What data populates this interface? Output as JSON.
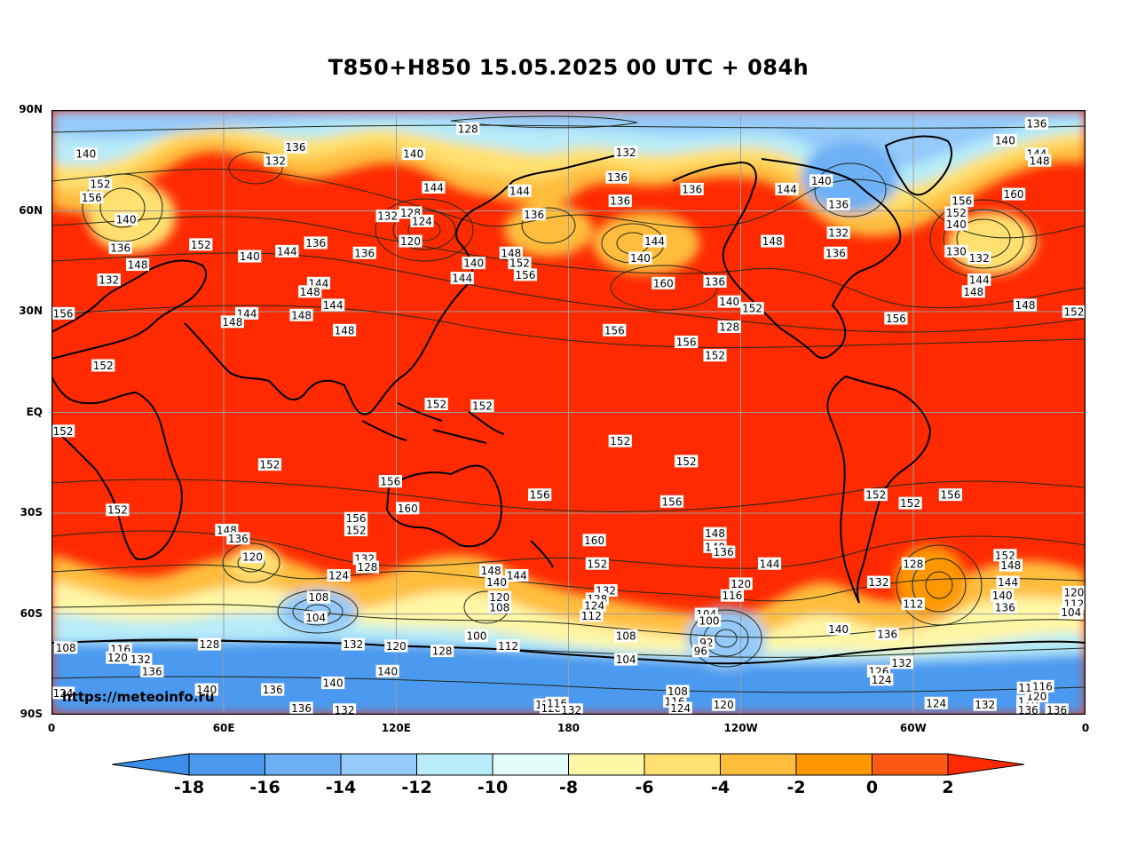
{
  "title": "T850+H850 15.05.2025 00 UTC + 084h",
  "watermark": "https://meteoinfo.ru",
  "lat_labels": [
    "90N",
    "60N",
    "30N",
    "EQ",
    "30S",
    "60S",
    "90S"
  ],
  "lon_labels": [
    "0",
    "60E",
    "120E",
    "180",
    "120W",
    "60W",
    "0"
  ],
  "colorbar": {
    "ticks": [
      "-18",
      "-16",
      "-14",
      "-12",
      "-10",
      "-8",
      "-6",
      "-4",
      "-2",
      "0",
      "2"
    ],
    "colors": [
      "#3b8fe9",
      "#4c9af0",
      "#6eb0f5",
      "#94c9fa",
      "#b7ecf8",
      "#e3fdfb",
      "#fff6a6",
      "#ffe070",
      "#ffbd3c",
      "#ff9800",
      "#ff5a14",
      "#ff2a00"
    ]
  },
  "contour_labels": [
    {
      "t": "128",
      "lon": 145,
      "lat": 84.5
    },
    {
      "t": "136",
      "lon": -17,
      "lat": 86
    },
    {
      "t": "140",
      "lon": -28,
      "lat": 81
    },
    {
      "t": "144",
      "lon": -17,
      "lat": 77
    },
    {
      "t": "148",
      "lon": -16,
      "lat": 75
    },
    {
      "t": "140",
      "lon": 12,
      "lat": 77
    },
    {
      "t": "136",
      "lon": 85,
      "lat": 79
    },
    {
      "t": "132",
      "lon": 78,
      "lat": 75
    },
    {
      "t": "140",
      "lon": 126,
      "lat": 77
    },
    {
      "t": "132",
      "lon": -160,
      "lat": 77.5
    },
    {
      "t": "136",
      "lon": -163,
      "lat": 70
    },
    {
      "t": "136",
      "lon": -137,
      "lat": 66.5
    },
    {
      "t": "144",
      "lon": -104,
      "lat": 66.5
    },
    {
      "t": "140",
      "lon": -92,
      "lat": 69
    },
    {
      "t": "136",
      "lon": -86,
      "lat": 62
    },
    {
      "t": "132",
      "lon": -86,
      "lat": 53.5
    },
    {
      "t": "136",
      "lon": -87,
      "lat": 47.5
    },
    {
      "t": "148",
      "lon": -109,
      "lat": 51
    },
    {
      "t": "156",
      "lon": -43,
      "lat": 63
    },
    {
      "t": "152",
      "lon": -45,
      "lat": 59.5
    },
    {
      "t": "140",
      "lon": -45,
      "lat": 56
    },
    {
      "t": "160",
      "lon": -25,
      "lat": 65
    },
    {
      "t": "130",
      "lon": -45,
      "lat": 48
    },
    {
      "t": "132",
      "lon": -37,
      "lat": 46
    },
    {
      "t": "144",
      "lon": -37,
      "lat": 39.5
    },
    {
      "t": "148",
      "lon": -39,
      "lat": 36
    },
    {
      "t": "148",
      "lon": -21,
      "lat": 32
    },
    {
      "t": "152",
      "lon": -4,
      "lat": 30
    },
    {
      "t": "156",
      "lon": -66,
      "lat": 28
    },
    {
      "t": "152",
      "lon": -116,
      "lat": 31
    },
    {
      "t": "136",
      "lon": -129,
      "lat": 39
    },
    {
      "t": "140",
      "lon": -124,
      "lat": 33
    },
    {
      "t": "128",
      "lon": -124,
      "lat": 25.5
    },
    {
      "t": "152",
      "lon": 17,
      "lat": 68
    },
    {
      "t": "156",
      "lon": 14,
      "lat": 64
    },
    {
      "t": "140",
      "lon": 26,
      "lat": 57.5
    },
    {
      "t": "136",
      "lon": 24,
      "lat": 49
    },
    {
      "t": "148",
      "lon": 30,
      "lat": 44
    },
    {
      "t": "152",
      "lon": 52,
      "lat": 50
    },
    {
      "t": "140",
      "lon": 69,
      "lat": 46.5
    },
    {
      "t": "144",
      "lon": 82,
      "lat": 48
    },
    {
      "t": "136",
      "lon": 92,
      "lat": 50.5
    },
    {
      "t": "136",
      "lon": 109,
      "lat": 47.5
    },
    {
      "t": "132",
      "lon": 117,
      "lat": 58.5
    },
    {
      "t": "128",
      "lon": 125,
      "lat": 59.5
    },
    {
      "t": "124",
      "lon": 129,
      "lat": 57
    },
    {
      "t": "120",
      "lon": 125,
      "lat": 51
    },
    {
      "t": "144",
      "lon": 133,
      "lat": 67
    },
    {
      "t": "144",
      "lon": 163,
      "lat": 66
    },
    {
      "t": "136",
      "lon": 168,
      "lat": 59
    },
    {
      "t": "148",
      "lon": 160,
      "lat": 47.5
    },
    {
      "t": "152",
      "lon": 163,
      "lat": 44.5
    },
    {
      "t": "156",
      "lon": 165,
      "lat": 41
    },
    {
      "t": "140",
      "lon": 147,
      "lat": 44.5
    },
    {
      "t": "144",
      "lon": 143,
      "lat": 40
    },
    {
      "t": "136",
      "lon": -162,
      "lat": 63
    },
    {
      "t": "144",
      "lon": -150,
      "lat": 51
    },
    {
      "t": "140",
      "lon": -155,
      "lat": 46
    },
    {
      "t": "160",
      "lon": -147,
      "lat": 38.5
    },
    {
      "t": "156",
      "lon": -164,
      "lat": 24.5
    },
    {
      "t": "156",
      "lon": -139,
      "lat": 21
    },
    {
      "t": "152",
      "lon": -129,
      "lat": 17
    },
    {
      "t": "132",
      "lon": 20,
      "lat": 39.5
    },
    {
      "t": "144",
      "lon": 93,
      "lat": 38.5
    },
    {
      "t": "148",
      "lon": 90,
      "lat": 36
    },
    {
      "t": "144",
      "lon": 98,
      "lat": 32
    },
    {
      "t": "148",
      "lon": 87,
      "lat": 29
    },
    {
      "t": "144",
      "lon": 68,
      "lat": 29.5
    },
    {
      "t": "148",
      "lon": 63,
      "lat": 27
    },
    {
      "t": "148",
      "lon": 102,
      "lat": 24.5
    },
    {
      "t": "156",
      "lon": 4,
      "lat": 29.5
    },
    {
      "t": "152",
      "lon": 18,
      "lat": 14
    },
    {
      "t": "152",
      "lon": 134,
      "lat": 2.5
    },
    {
      "t": "152",
      "lon": 150,
      "lat": 2
    },
    {
      "t": "152",
      "lon": 4,
      "lat": -5.5
    },
    {
      "t": "152",
      "lon": -162,
      "lat": -8.5
    },
    {
      "t": "152",
      "lon": -139,
      "lat": -14.5
    },
    {
      "t": "152",
      "lon": 76,
      "lat": -15.5
    },
    {
      "t": "156",
      "lon": 118,
      "lat": -20.5
    },
    {
      "t": "156",
      "lon": 170,
      "lat": -24.5
    },
    {
      "t": "156",
      "lon": -144,
      "lat": -26.5
    },
    {
      "t": "152",
      "lon": -73,
      "lat": -24.5
    },
    {
      "t": "152",
      "lon": -61,
      "lat": -27
    },
    {
      "t": "156",
      "lon": -47,
      "lat": -24.5
    },
    {
      "t": "152",
      "lon": 23,
      "lat": -29
    },
    {
      "t": "160",
      "lon": 124,
      "lat": -28.5
    },
    {
      "t": "156",
      "lon": 106,
      "lat": -31.5
    },
    {
      "t": "152",
      "lon": 106,
      "lat": -35
    },
    {
      "t": "148",
      "lon": 61,
      "lat": -35
    },
    {
      "t": "136",
      "lon": 65,
      "lat": -37.5
    },
    {
      "t": "120",
      "lon": 70,
      "lat": -43
    },
    {
      "t": "132",
      "lon": 109,
      "lat": -43.5
    },
    {
      "t": "128",
      "lon": 110,
      "lat": -46
    },
    {
      "t": "124",
      "lon": 100,
      "lat": -48.5
    },
    {
      "t": "160",
      "lon": -171,
      "lat": -38
    },
    {
      "t": "152",
      "lon": -170,
      "lat": -45
    },
    {
      "t": "148",
      "lon": -129,
      "lat": -36
    },
    {
      "t": "140",
      "lon": -129,
      "lat": -40
    },
    {
      "t": "136",
      "lon": -126,
      "lat": -41.5
    },
    {
      "t": "144",
      "lon": -110,
      "lat": -45
    },
    {
      "t": "132",
      "lon": -167,
      "lat": -53
    },
    {
      "t": "128",
      "lon": -170,
      "lat": -55.5
    },
    {
      "t": "124",
      "lon": -171,
      "lat": -57.5
    },
    {
      "t": "120",
      "lon": -120,
      "lat": -51
    },
    {
      "t": "116",
      "lon": -123,
      "lat": -54.5
    },
    {
      "t": "104",
      "lon": -132,
      "lat": -60
    },
    {
      "t": "100",
      "lon": -131,
      "lat": -62
    },
    {
      "t": "92",
      "lon": -132,
      "lat": -68.5
    },
    {
      "t": "96",
      "lon": -134,
      "lat": -71
    },
    {
      "t": "108",
      "lon": -160,
      "lat": -66.5
    },
    {
      "t": "104",
      "lon": -160,
      "lat": -73.5
    },
    {
      "t": "112",
      "lon": -172,
      "lat": -60.5
    },
    {
      "t": "148",
      "lon": 153,
      "lat": -47
    },
    {
      "t": "144",
      "lon": 162,
      "lat": -48.5
    },
    {
      "t": "140",
      "lon": 155,
      "lat": -50.5
    },
    {
      "t": "120",
      "lon": 156,
      "lat": -55
    },
    {
      "t": "108",
      "lon": 156,
      "lat": -58
    },
    {
      "t": "100",
      "lon": 148,
      "lat": -66.5
    },
    {
      "t": "112",
      "lon": 159,
      "lat": -69.5
    },
    {
      "t": "108",
      "lon": 93,
      "lat": -55
    },
    {
      "t": "104",
      "lon": 92,
      "lat": -61
    },
    {
      "t": "128",
      "lon": -60,
      "lat": -45
    },
    {
      "t": "132",
      "lon": -72,
      "lat": -50.5
    },
    {
      "t": "112",
      "lon": -60,
      "lat": -57
    },
    {
      "t": "152",
      "lon": -28,
      "lat": -42.5
    },
    {
      "t": "148",
      "lon": -26,
      "lat": -45.5
    },
    {
      "t": "144",
      "lon": -27,
      "lat": -50.5
    },
    {
      "t": "140",
      "lon": -29,
      "lat": -54.5
    },
    {
      "t": "136",
      "lon": -28,
      "lat": -58
    },
    {
      "t": "120",
      "lon": -3,
      "lat": -53.5
    },
    {
      "t": "112",
      "lon": -4,
      "lat": -57
    },
    {
      "t": "104",
      "lon": -5,
      "lat": -59.5
    },
    {
      "t": "140",
      "lon": -86,
      "lat": -64.5
    },
    {
      "t": "136",
      "lon": -69,
      "lat": -66
    },
    {
      "t": "132",
      "lon": -64,
      "lat": -74.5
    },
    {
      "t": "126",
      "lon": -72,
      "lat": -77
    },
    {
      "t": "124",
      "lon": -71,
      "lat": -79.5
    },
    {
      "t": "108",
      "lon": 5,
      "lat": -70
    },
    {
      "t": "116",
      "lon": 24,
      "lat": -70.5
    },
    {
      "t": "120",
      "lon": 23,
      "lat": -73
    },
    {
      "t": "132",
      "lon": 31,
      "lat": -73.5
    },
    {
      "t": "136",
      "lon": 35,
      "lat": -77
    },
    {
      "t": "128",
      "lon": 55,
      "lat": -69
    },
    {
      "t": "132",
      "lon": 105,
      "lat": -69
    },
    {
      "t": "120",
      "lon": 120,
      "lat": -69.5
    },
    {
      "t": "128",
      "lon": 136,
      "lat": -71
    },
    {
      "t": "140",
      "lon": 117,
      "lat": -77
    },
    {
      "t": "140",
      "lon": 98,
      "lat": -80.5
    },
    {
      "t": "136",
      "lon": 77,
      "lat": -82.5
    },
    {
      "t": "140",
      "lon": 54,
      "lat": -82.5
    },
    {
      "t": "124",
      "lon": 3,
      "lat": -83.5
    },
    {
      "t": "136",
      "lon": 87,
      "lat": -88
    },
    {
      "t": "132",
      "lon": 102,
      "lat": -88.5
    },
    {
      "t": "120",
      "lon": 172,
      "lat": -87
    },
    {
      "t": "128",
      "lon": 174,
      "lat": -88
    },
    {
      "t": "116",
      "lon": 176,
      "lat": -86.5
    },
    {
      "t": "132",
      "lon": -179,
      "lat": -88.5
    },
    {
      "t": "108",
      "lon": -142,
      "lat": -83
    },
    {
      "t": "116",
      "lon": -143,
      "lat": -86
    },
    {
      "t": "124",
      "lon": -141,
      "lat": -88
    },
    {
      "t": "120",
      "lon": -126,
      "lat": -87
    },
    {
      "t": "124",
      "lon": -52,
      "lat": -86.5
    },
    {
      "t": "132",
      "lon": -35,
      "lat": -87
    },
    {
      "t": "128",
      "lon": -20,
      "lat": -86
    },
    {
      "t": "136",
      "lon": -20,
      "lat": -88.5
    },
    {
      "t": "136",
      "lon": -10,
      "lat": -88.5
    },
    {
      "t": "116",
      "lon": -15,
      "lat": -81.5
    },
    {
      "t": "120",
      "lon": -17,
      "lat": -84.5
    },
    {
      "t": "11",
      "lon": -21,
      "lat": -82
    }
  ]
}
